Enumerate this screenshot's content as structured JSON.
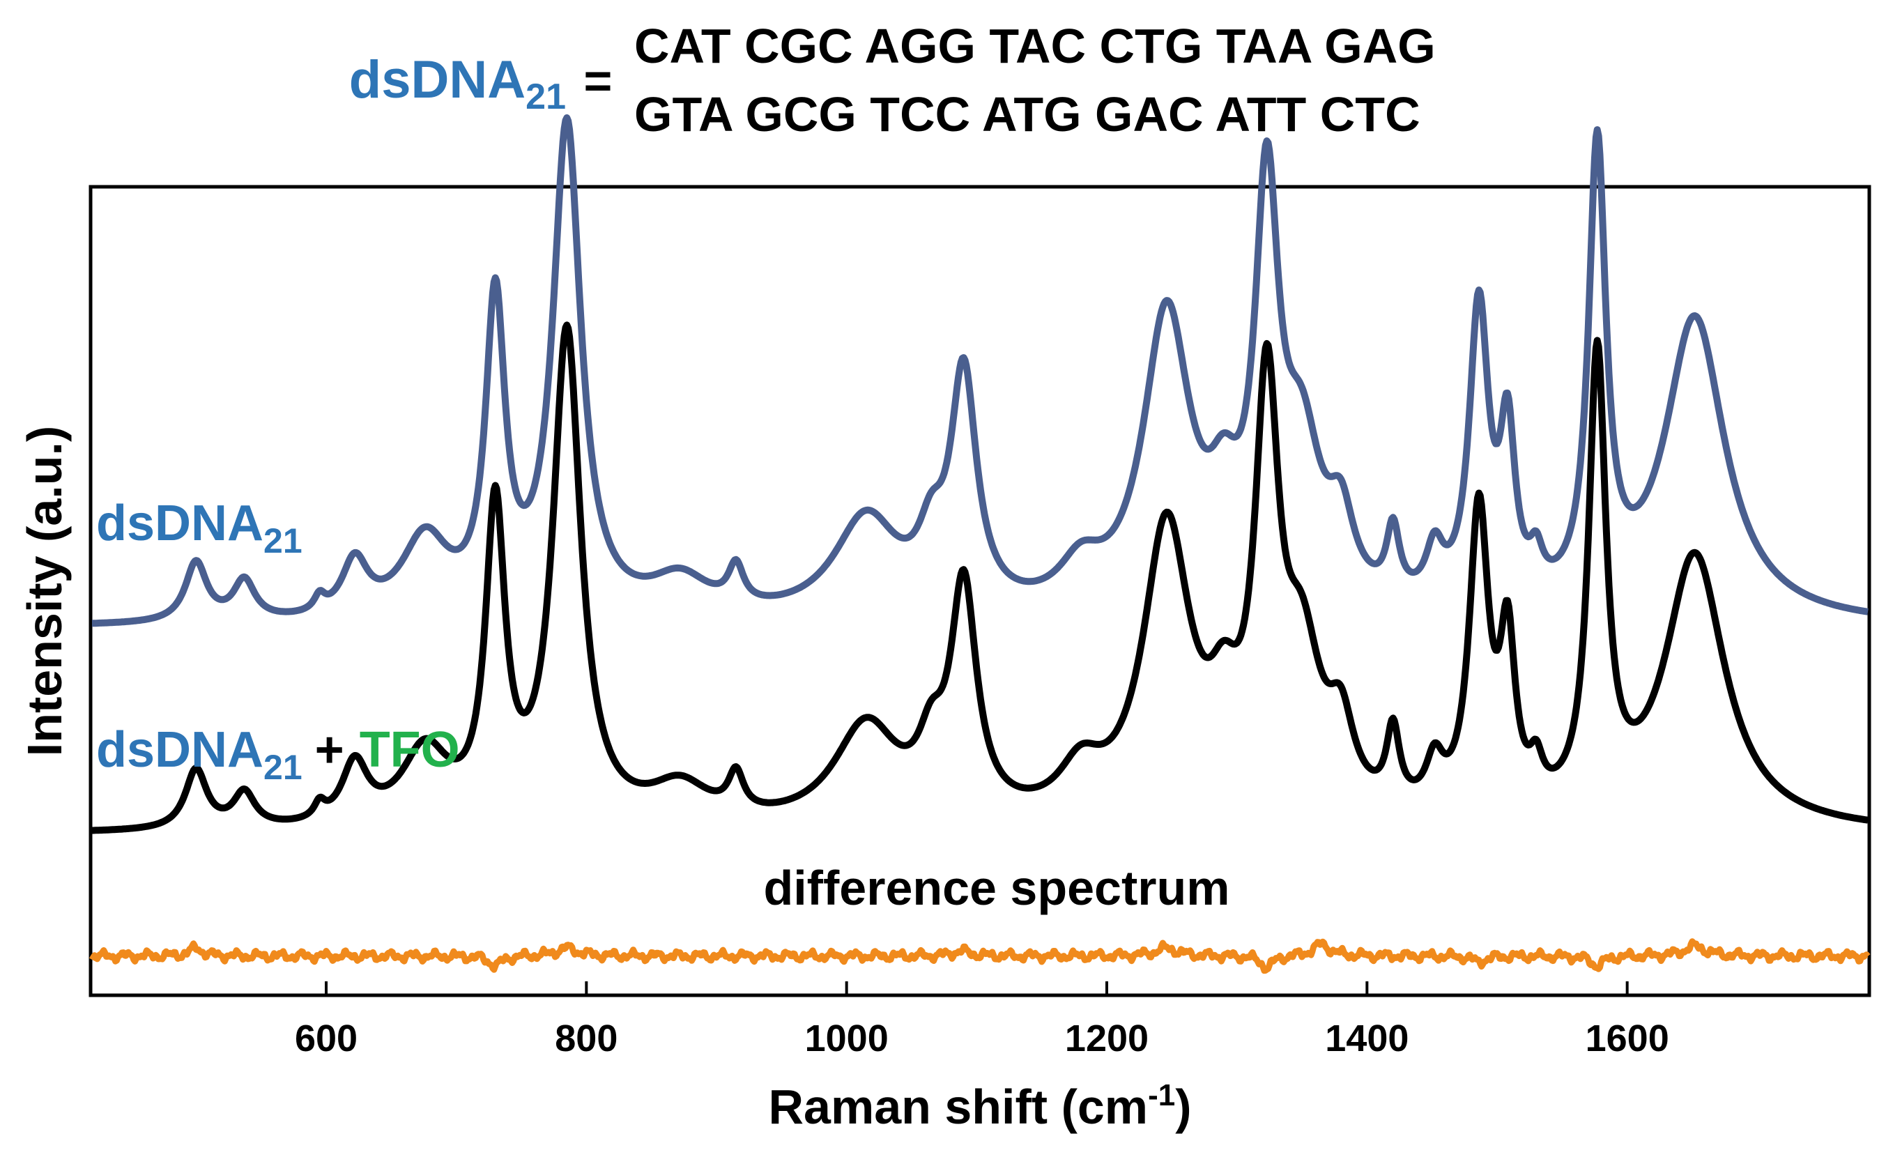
{
  "colors": {
    "blue_text": "#2E75B6",
    "green_text": "#22B14C",
    "axis": "#000000"
  },
  "header": {
    "label_main": "dsDNA",
    "label_sub": "21",
    "equals": "=",
    "sequence_line1": "CAT CGC AGG TAC CTG TAA GAG",
    "sequence_line2": "GTA GCG TCC ATG GAC ATT CTC"
  },
  "labels": {
    "dsdna_main": "dsDNA",
    "dsdna_sub": "21",
    "plus": "+",
    "tfo": "TFO",
    "difference": "difference spectrum"
  },
  "chart_data": {
    "type": "line",
    "title": "",
    "xlabel_main": "Raman shift (cm",
    "xlabel_sup": "-1",
    "xlabel_close": ")",
    "ylabel": "Intensity (a.u.)",
    "xlim": [
      420,
      1785
    ],
    "ylim": [
      0,
      1.0
    ],
    "ticks": [
      600,
      800,
      1000,
      1200,
      1400,
      1600
    ],
    "tick_labels": [
      "600",
      "800",
      "1000",
      "1200",
      "1400",
      "1600"
    ],
    "grid": false,
    "series": [
      {
        "name": "dsDNA21",
        "color": "#4A5F8F",
        "baseline": 0.455,
        "scale": 0.00123,
        "peaks": [
          [
            500,
            60,
            10
          ],
          [
            537,
            40,
            10
          ],
          [
            595,
            15,
            5
          ],
          [
            622,
            55,
            12
          ],
          [
            676,
            80,
            22
          ],
          [
            730,
            310,
            9
          ],
          [
            785,
            495,
            13
          ],
          [
            872,
            38,
            28
          ],
          [
            915,
            38,
            7
          ],
          [
            1015,
            100,
            30
          ],
          [
            1065,
            55,
            12
          ],
          [
            1090,
            235,
            12
          ],
          [
            1180,
            40,
            20
          ],
          [
            1246,
            300,
            22
          ],
          [
            1290,
            75,
            14
          ],
          [
            1323,
            400,
            11
          ],
          [
            1350,
            150,
            18
          ],
          [
            1380,
            75,
            12
          ],
          [
            1420,
            68,
            6
          ],
          [
            1452,
            50,
            8
          ],
          [
            1486,
            300,
            9
          ],
          [
            1508,
            165,
            7
          ],
          [
            1530,
            35,
            6
          ],
          [
            1577,
            455,
            8
          ],
          [
            1652,
            305,
            28
          ]
        ]
      },
      {
        "name": "dsDNA21 + TFO",
        "color": "#000000",
        "baseline": 0.198,
        "scale": 0.00123,
        "peaks": [
          [
            500,
            60,
            10
          ],
          [
            537,
            35,
            10
          ],
          [
            595,
            15,
            5
          ],
          [
            622,
            60,
            12
          ],
          [
            676,
            75,
            22
          ],
          [
            730,
            310,
            9
          ],
          [
            785,
            495,
            13
          ],
          [
            872,
            38,
            28
          ],
          [
            915,
            38,
            7
          ],
          [
            1015,
            100,
            30
          ],
          [
            1065,
            55,
            12
          ],
          [
            1090,
            230,
            12
          ],
          [
            1180,
            45,
            20
          ],
          [
            1246,
            295,
            22
          ],
          [
            1290,
            75,
            14
          ],
          [
            1323,
            405,
            11
          ],
          [
            1350,
            150,
            18
          ],
          [
            1380,
            75,
            12
          ],
          [
            1420,
            75,
            6
          ],
          [
            1452,
            45,
            8
          ],
          [
            1486,
            305,
            9
          ],
          [
            1508,
            165,
            7
          ],
          [
            1530,
            35,
            6
          ],
          [
            1577,
            455,
            8
          ],
          [
            1652,
            275,
            28
          ]
        ]
      },
      {
        "name": "difference spectrum",
        "color": "#F08A1C",
        "baseline": 0.047,
        "scale": 0.00123,
        "peaks": [
          [
            500,
            8,
            6
          ],
          [
            730,
            -10,
            6
          ],
          [
            785,
            8,
            10
          ],
          [
            1088,
            5,
            8
          ],
          [
            1246,
            8,
            10
          ],
          [
            1323,
            -12,
            6
          ],
          [
            1365,
            12,
            8
          ],
          [
            1486,
            -6,
            6
          ],
          [
            1577,
            -10,
            6
          ],
          [
            1652,
            10,
            10
          ]
        ]
      }
    ]
  }
}
